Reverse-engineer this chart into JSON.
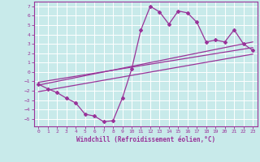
{
  "xlabel": "Windchill (Refroidissement éolien,°C)",
  "bg_color": "#c8eaea",
  "line_color": "#993399",
  "grid_color": "#ffffff",
  "xlim": [
    -0.5,
    23.5
  ],
  "ylim": [
    -5.8,
    7.5
  ],
  "xticks": [
    0,
    1,
    2,
    3,
    4,
    5,
    6,
    7,
    8,
    9,
    10,
    11,
    12,
    13,
    14,
    15,
    16,
    17,
    18,
    19,
    20,
    21,
    22,
    23
  ],
  "yticks": [
    -5,
    -4,
    -3,
    -2,
    -1,
    0,
    1,
    2,
    3,
    4,
    5,
    6,
    7
  ],
  "main_x": [
    0,
    1,
    2,
    3,
    4,
    5,
    6,
    7,
    8,
    9,
    10,
    11,
    12,
    13,
    14,
    15,
    16,
    17,
    18,
    19,
    20,
    21,
    22,
    23
  ],
  "main_y": [
    -1.3,
    -1.8,
    -2.2,
    -2.8,
    -3.3,
    -4.5,
    -4.7,
    -5.3,
    -5.2,
    -2.8,
    0.3,
    4.5,
    7.0,
    6.4,
    5.1,
    6.5,
    6.3,
    5.3,
    3.2,
    3.4,
    3.2,
    4.5,
    3.0,
    2.3
  ],
  "line1_x": [
    0,
    23
  ],
  "line1_y": [
    -1.4,
    3.2
  ],
  "line2_x": [
    0,
    23
  ],
  "line2_y": [
    -1.1,
    2.6
  ],
  "line3_x": [
    0,
    23
  ],
  "line3_y": [
    -2.1,
    1.9
  ]
}
